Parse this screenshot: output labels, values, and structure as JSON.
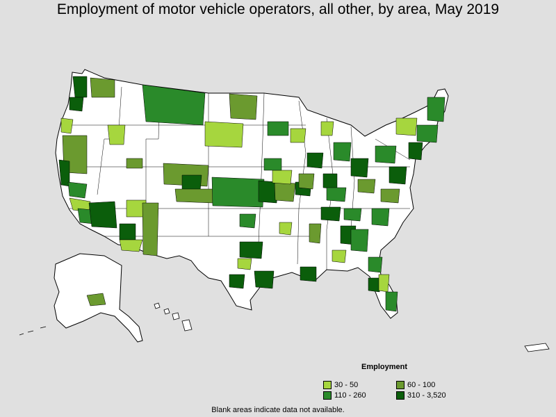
{
  "title": "Employment of motor vehicle operators, all other, by area, May 2019",
  "legend": {
    "title": "Employment",
    "items": [
      {
        "label": "30 - 50",
        "color": "#a6d63e"
      },
      {
        "label": "60 - 100",
        "color": "#6b9a2f"
      },
      {
        "label": "110 - 260",
        "color": "#2a8a2a"
      },
      {
        "label": "310 - 3,520",
        "color": "#0b5e0b"
      }
    ]
  },
  "note": "Blank areas indicate data not available.",
  "colors": {
    "background": "#e0e0e0",
    "land": "#ffffff",
    "border": "#000000"
  }
}
